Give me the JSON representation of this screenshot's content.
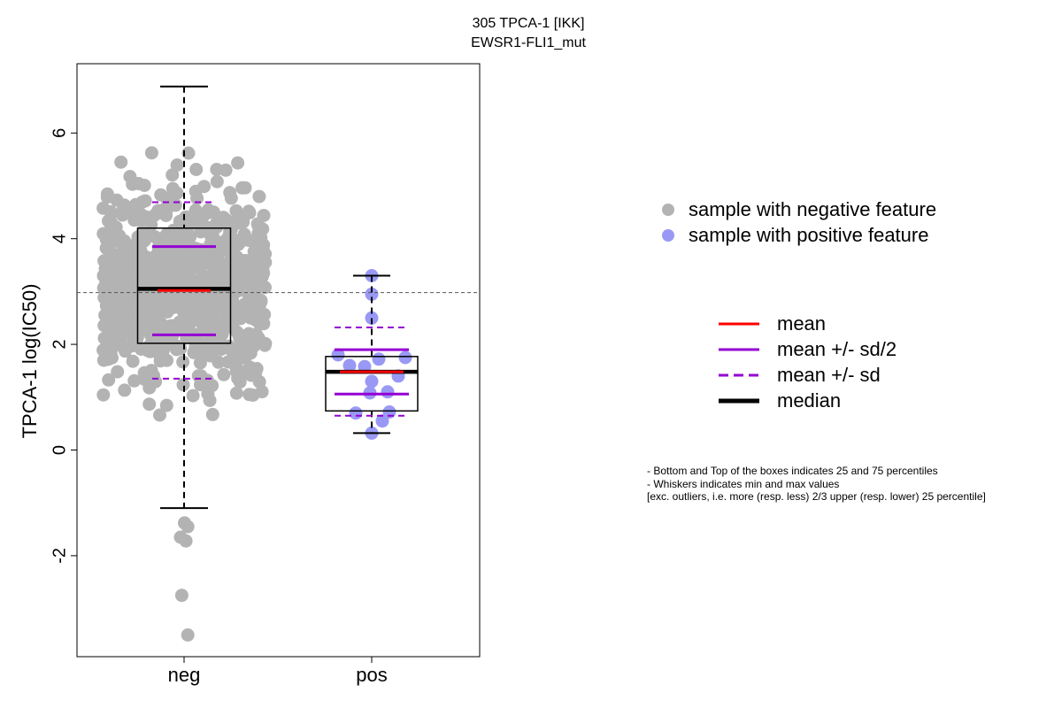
{
  "chart_data": {
    "type": "box",
    "title": "305 TPCA-1 [IKK]",
    "subtitle": "EWSR1-FLI1_mut",
    "ylabel": "TPCA-1 log(IC50)",
    "categories": [
      "neg",
      "pos"
    ],
    "y_ticks": [
      "-2",
      "0",
      "2",
      "4",
      "6"
    ],
    "ylim": [
      -3.92,
      7.3
    ],
    "reference_line": 2.98,
    "groups": [
      {
        "name": "neg",
        "color": "#b3b3b3",
        "whisker_low": -1.1,
        "q1": 2.02,
        "median": 3.05,
        "q3": 4.2,
        "whisker_high": 6.88,
        "mean": 3.02,
        "mean_minus_half_sd": 2.18,
        "mean_plus_half_sd": 3.85,
        "mean_minus_sd": 1.35,
        "mean_plus_sd": 4.69,
        "outliers": [
          -1.38,
          -1.45,
          -1.65,
          -1.72,
          -2.75,
          -3.5
        ]
      },
      {
        "name": "pos",
        "color": "#9999f5",
        "whisker_low": 0.32,
        "q1": 0.74,
        "median": 1.48,
        "q3": 1.77,
        "whisker_high": 3.3,
        "mean": 1.48,
        "mean_minus_half_sd": 1.06,
        "mean_plus_half_sd": 1.9,
        "mean_minus_sd": 0.65,
        "mean_plus_sd": 2.32,
        "points": [
          3.3,
          2.95,
          2.5,
          1.8,
          1.75,
          1.72,
          1.6,
          1.58,
          1.4,
          1.3,
          1.1,
          1.08,
          0.72,
          0.7,
          0.55,
          0.32
        ]
      }
    ]
  },
  "legend": {
    "points": [
      {
        "label": "sample with negative feature",
        "color": "#b3b3b3"
      },
      {
        "label": "sample with positive feature",
        "color": "#9999f5"
      }
    ],
    "lines": [
      {
        "label": "mean",
        "color": "#ff0000",
        "style": "solid"
      },
      {
        "label": "mean +/- sd/2",
        "color": "#9400d3",
        "style": "solid"
      },
      {
        "label": "mean +/- sd",
        "color": "#9400d3",
        "style": "dashed"
      },
      {
        "label": "median",
        "color": "#000000",
        "style": "thick"
      }
    ]
  },
  "notes": [
    "- Bottom and Top of the boxes indicates 25 and 75 percentiles",
    "- Whiskers indicates min and max values",
    "[exc. outliers, i.e. more (resp. less) 2/3 upper (resp. lower) 25 percentile]"
  ]
}
